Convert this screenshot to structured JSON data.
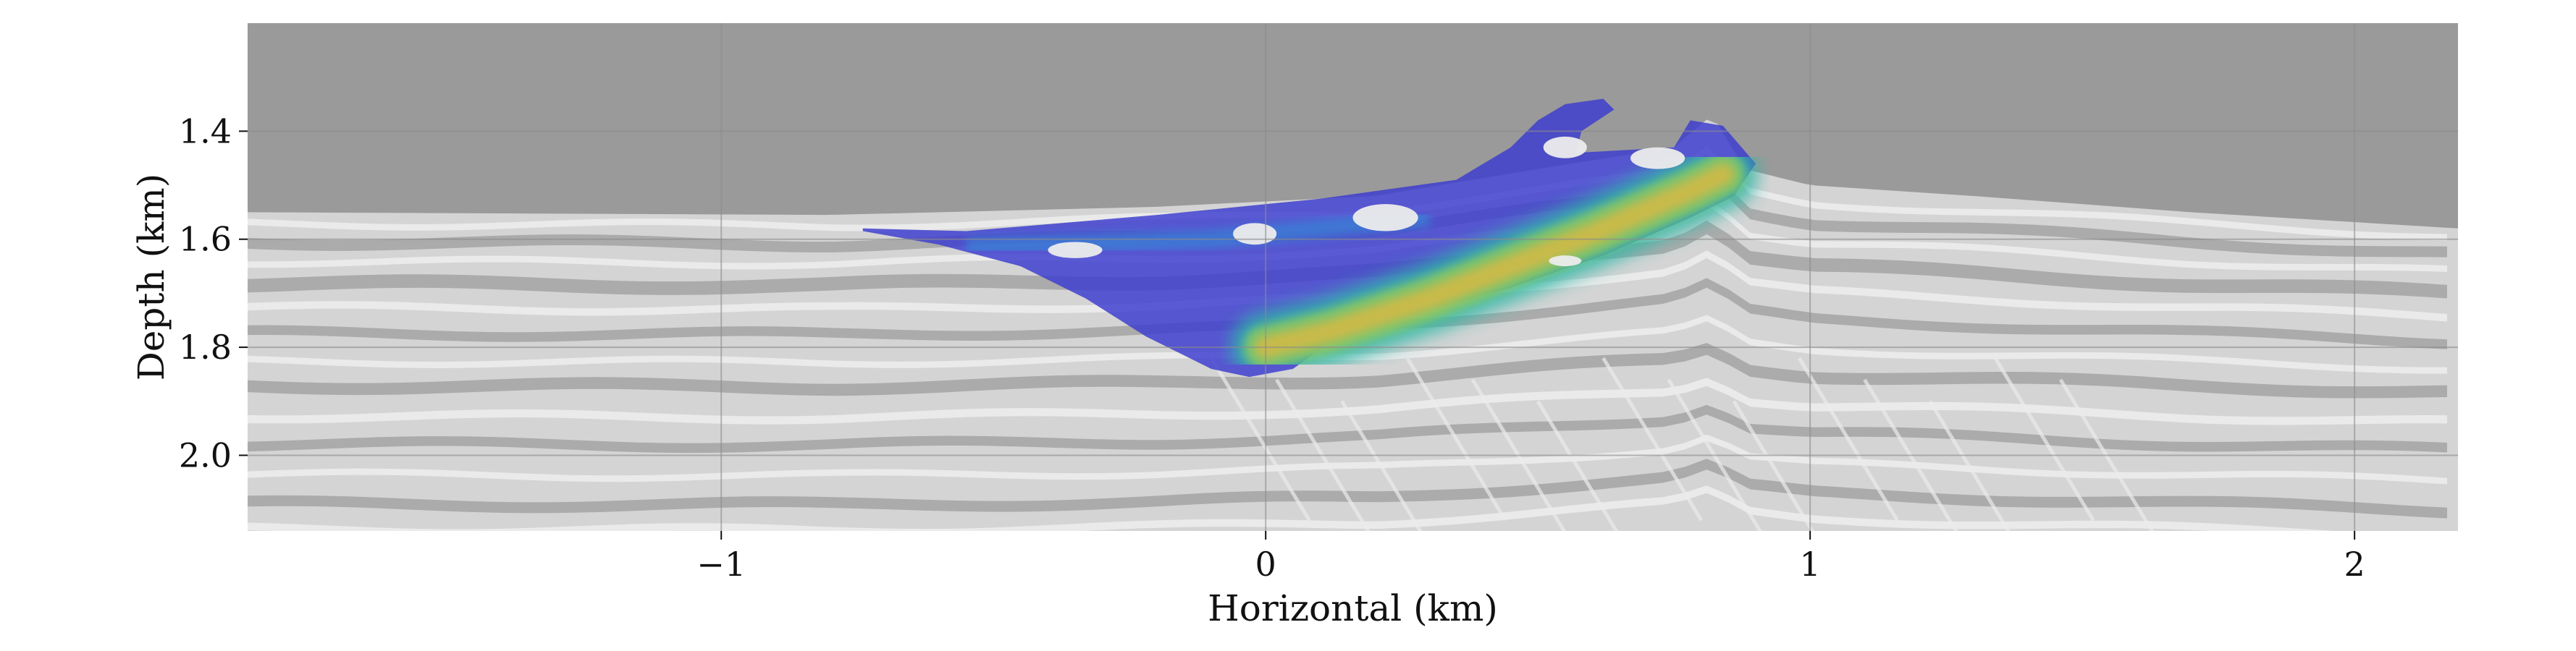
{
  "chart_data": {
    "type": "heatmap",
    "title": "",
    "xlabel": "Horizontal (km)",
    "ylabel": "Depth (km)",
    "xlim": [
      -1.87,
      2.19
    ],
    "ylim": [
      2.14,
      1.2
    ],
    "y_inverted": true,
    "grid": true,
    "x_ticks": [
      {
        "value": -1,
        "label": "−1"
      },
      {
        "value": 0,
        "label": "0"
      },
      {
        "value": 1,
        "label": "1"
      },
      {
        "value": 2,
        "label": "2"
      }
    ],
    "y_ticks": [
      {
        "value": 1.4,
        "label": "1.4"
      },
      {
        "value": 1.6,
        "label": "1.6"
      },
      {
        "value": 1.8,
        "label": "1.8"
      },
      {
        "value": 2.0,
        "label": "2.0"
      }
    ],
    "background": "grayscale seismic velocity model with water layer above seafloor",
    "overlay": {
      "colormap": [
        "#3b3bd0",
        "#3a7fd6",
        "#2fb8a8",
        "#8cc860",
        "#e0b840"
      ],
      "region_outline": [
        [
          -0.74,
          1.58
        ],
        [
          -0.55,
          1.585
        ],
        [
          -0.2,
          1.555
        ],
        [
          0.1,
          1.525
        ],
        [
          0.35,
          1.49
        ],
        [
          0.45,
          1.43
        ],
        [
          0.5,
          1.38
        ],
        [
          0.55,
          1.35
        ],
        [
          0.62,
          1.34
        ],
        [
          0.64,
          1.36
        ],
        [
          0.58,
          1.4
        ],
        [
          0.57,
          1.44
        ],
        [
          0.75,
          1.43
        ],
        [
          0.78,
          1.38
        ],
        [
          0.84,
          1.39
        ],
        [
          0.9,
          1.46
        ],
        [
          0.86,
          1.52
        ],
        [
          0.78,
          1.56
        ],
        [
          0.62,
          1.63
        ],
        [
          0.45,
          1.69
        ],
        [
          0.3,
          1.73
        ],
        [
          0.12,
          1.79
        ],
        [
          0.05,
          1.84
        ],
        [
          -0.03,
          1.855
        ],
        [
          -0.1,
          1.84
        ],
        [
          -0.22,
          1.78
        ],
        [
          -0.33,
          1.71
        ],
        [
          -0.45,
          1.65
        ],
        [
          -0.6,
          1.61
        ],
        [
          -0.74,
          1.585
        ]
      ],
      "high_amplitude_band": [
        [
          0.0,
          1.8
        ],
        [
          0.12,
          1.77
        ],
        [
          0.3,
          1.71
        ],
        [
          0.45,
          1.65
        ],
        [
          0.6,
          1.59
        ],
        [
          0.78,
          1.51
        ],
        [
          0.84,
          1.48
        ]
      ]
    },
    "colors": {
      "water": "#9a9a9a",
      "sediment_light": "#d4d4d4",
      "sediment_dark": "#a6a6a6",
      "layer_white": "#ececec",
      "grid": "#8c8c8c"
    }
  }
}
